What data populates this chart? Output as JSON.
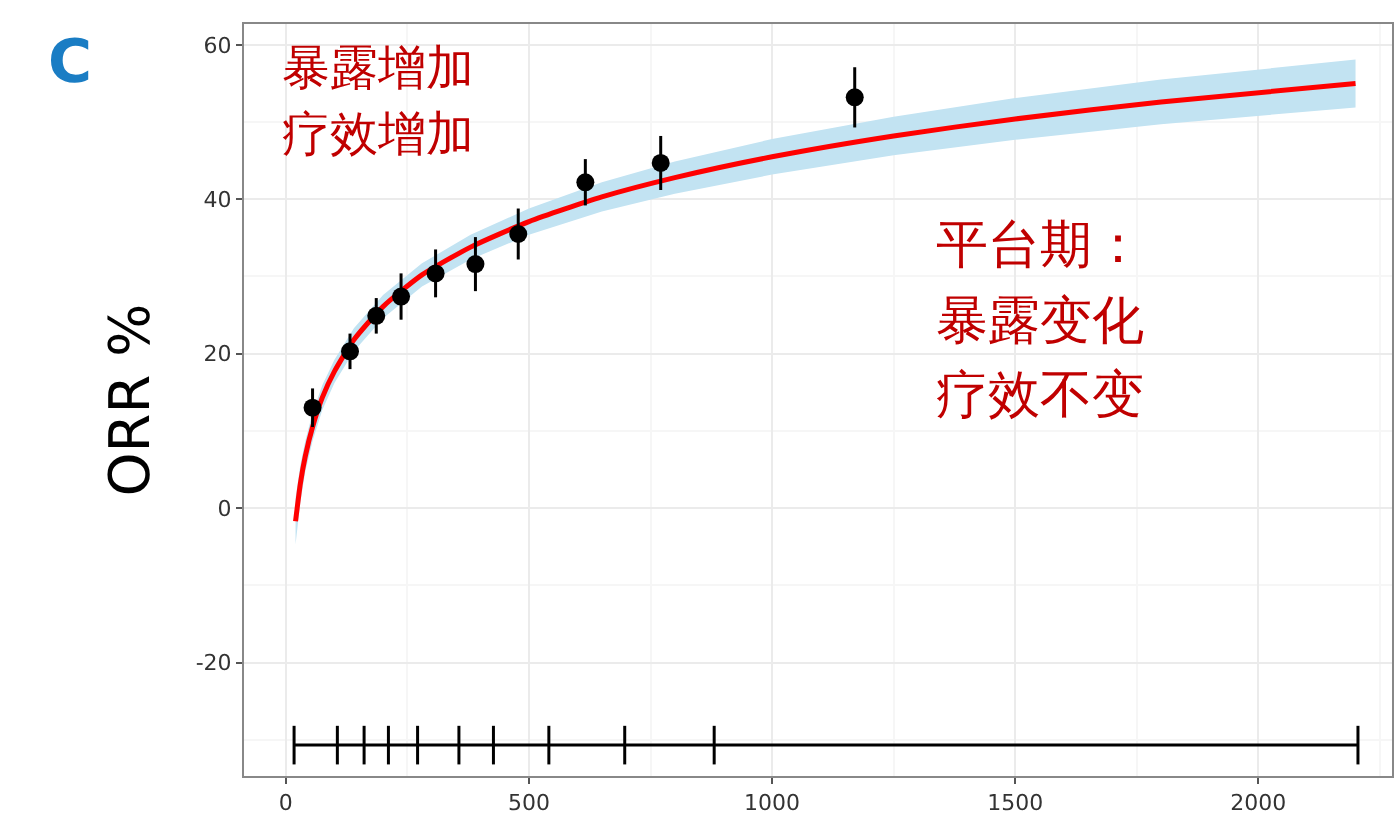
{
  "chart_data": {
    "type": "scatter",
    "ylabel": "ORR %",
    "annotations": [
      "C",
      "暴露增加",
      "疗效增加",
      "平台期：",
      "暴露变化",
      "疗效不变"
    ],
    "xlim": [
      -86,
      2275
    ],
    "ylim": [
      -34.7,
      62.7
    ],
    "xticks": [
      0,
      500,
      1000,
      1500,
      2000
    ],
    "yticks": [
      -20,
      0,
      20,
      40,
      60
    ],
    "grid": true,
    "series": [
      {
        "type": "line",
        "color": "#ff0000",
        "line_style": "solid",
        "marker": "none",
        "x": [
          20,
          30,
          40,
          55,
          75,
          100,
          140,
          200,
          280,
          380,
          500,
          650,
          800,
          1000,
          1250,
          1500,
          1800,
          2200
        ],
        "values": [
          -1.7,
          3.2,
          6.7,
          10.5,
          14.3,
          17.7,
          21.8,
          26.1,
          30.2,
          33.8,
          37.1,
          40.3,
          42.8,
          45.5,
          48.2,
          50.4,
          52.6,
          55.0
        ],
        "lower": [
          -4.7,
          0.8,
          4.7,
          8.7,
          12.7,
          16.2,
          20.3,
          24.6,
          28.7,
          32.2,
          35.4,
          38.4,
          40.7,
          43.2,
          45.7,
          47.7,
          49.7,
          51.9
        ],
        "upper": [
          1.3,
          5.6,
          8.7,
          12.3,
          15.9,
          19.2,
          23.3,
          27.6,
          31.7,
          35.4,
          38.8,
          42.2,
          44.9,
          47.8,
          50.7,
          53.1,
          55.5,
          58.1
        ]
      },
      {
        "color": "#000000",
        "marker": "circle",
        "x": [
          55,
          132,
          186,
          237,
          308,
          390,
          478,
          616,
          771,
          1170
        ],
        "values": [
          13.0,
          20.3,
          24.9,
          27.4,
          30.4,
          31.6,
          35.5,
          42.2,
          44.7,
          53.2
        ],
        "errors": [
          2.5,
          2.3,
          2.3,
          3.0,
          3.1,
          3.5,
          3.3,
          3.0,
          3.5,
          3.9
        ]
      },
      {
        "type": "line",
        "color": "#000000",
        "marker": "none",
        "x": [
          17,
          106,
          161,
          211,
          271,
          356,
          427,
          541,
          697,
          881,
          2205
        ],
        "values": [
          -30.7,
          -30.7,
          -30.7,
          -30.7,
          -30.7,
          -30.7,
          -30.7,
          -30.7,
          -30.7,
          -30.7,
          -30.7
        ],
        "errors": [
          2.5,
          2.5,
          2.5,
          2.5,
          2.5,
          2.5,
          2.5,
          2.5,
          2.5,
          2.5,
          2.5
        ]
      }
    ]
  }
}
